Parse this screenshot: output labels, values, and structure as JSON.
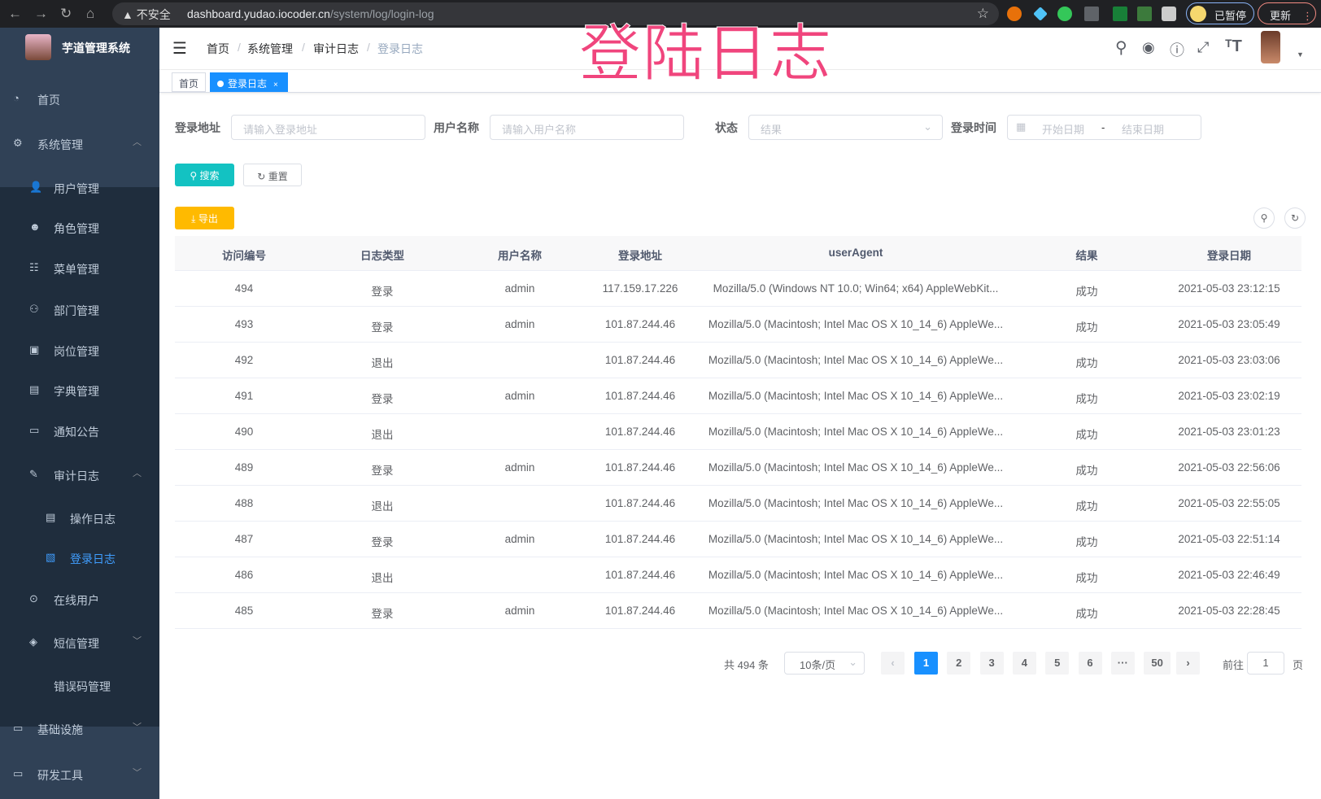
{
  "browser": {
    "back": "←",
    "forward": "→",
    "reload": "↻",
    "home": "⌂",
    "security": "▲ 不安全",
    "host": "dashboard.yudao.iocoder.cn",
    "path": "/system/log/login-log",
    "star": "☆",
    "paused": "已暂停",
    "update": "更新",
    "menu": "⋮"
  },
  "overlay_title": "登陆日志",
  "sidebar": {
    "title": "芋道管理系统",
    "items": [
      {
        "label": "首页",
        "icon": "dashboard-icon"
      },
      {
        "label": "系统管理",
        "icon": "gear-icon",
        "expanded": true
      },
      {
        "label": "用户管理",
        "icon": "user-icon"
      },
      {
        "label": "角色管理",
        "icon": "role-icon"
      },
      {
        "label": "菜单管理",
        "icon": "menu-icon"
      },
      {
        "label": "部门管理",
        "icon": "tree-icon"
      },
      {
        "label": "岗位管理",
        "icon": "post-icon"
      },
      {
        "label": "字典管理",
        "icon": "dict-icon"
      },
      {
        "label": "通知公告",
        "icon": "message-icon"
      },
      {
        "label": "审计日志",
        "icon": "log-icon",
        "expanded": true
      },
      {
        "label": "操作日志",
        "icon": "form-icon"
      },
      {
        "label": "登录日志",
        "icon": "logininfor-icon",
        "active": true
      },
      {
        "label": "在线用户",
        "icon": "online-icon"
      },
      {
        "label": "短信管理",
        "icon": "sms-icon"
      },
      {
        "label": "错误码管理",
        "icon": "code-icon"
      },
      {
        "label": "基础设施",
        "icon": "monitor-icon"
      },
      {
        "label": "研发工具",
        "icon": "tool-icon"
      }
    ]
  },
  "breadcrumb": [
    "首页",
    "系统管理",
    "审计日志",
    "登录日志"
  ],
  "tags": [
    {
      "label": "首页"
    },
    {
      "label": "登录日志",
      "active": true,
      "close": "×"
    }
  ],
  "filters": {
    "ip": {
      "label": "登录地址",
      "placeholder": "请输入登录地址"
    },
    "username": {
      "label": "用户名称",
      "placeholder": "请输入用户名称"
    },
    "status": {
      "label": "状态",
      "placeholder": "结果"
    },
    "time": {
      "label": "登录时间",
      "start": "开始日期",
      "sep": "-",
      "end": "结束日期"
    }
  },
  "buttons": {
    "search": "搜索",
    "reset": "重置",
    "export": "导出"
  },
  "colors": {
    "primary": "#1890ff",
    "search": "#13c2c2",
    "export": "#ffba00",
    "sidebar": "#304156",
    "overlay": "#f0457d"
  },
  "table": {
    "columns": [
      "访问编号",
      "日志类型",
      "用户名称",
      "登录地址",
      "userAgent",
      "结果",
      "登录日期"
    ],
    "rows": [
      [
        "494",
        "登录",
        "admin",
        "117.159.17.226",
        "Mozilla/5.0 (Windows NT 10.0; Win64; x64) AppleWebKit...",
        "成功",
        "2021-05-03 23:12:15"
      ],
      [
        "493",
        "登录",
        "admin",
        "101.87.244.46",
        "Mozilla/5.0 (Macintosh; Intel Mac OS X 10_14_6) AppleWe...",
        "成功",
        "2021-05-03 23:05:49"
      ],
      [
        "492",
        "退出",
        "",
        "101.87.244.46",
        "Mozilla/5.0 (Macintosh; Intel Mac OS X 10_14_6) AppleWe...",
        "成功",
        "2021-05-03 23:03:06"
      ],
      [
        "491",
        "登录",
        "admin",
        "101.87.244.46",
        "Mozilla/5.0 (Macintosh; Intel Mac OS X 10_14_6) AppleWe...",
        "成功",
        "2021-05-03 23:02:19"
      ],
      [
        "490",
        "退出",
        "",
        "101.87.244.46",
        "Mozilla/5.0 (Macintosh; Intel Mac OS X 10_14_6) AppleWe...",
        "成功",
        "2021-05-03 23:01:23"
      ],
      [
        "489",
        "登录",
        "admin",
        "101.87.244.46",
        "Mozilla/5.0 (Macintosh; Intel Mac OS X 10_14_6) AppleWe...",
        "成功",
        "2021-05-03 22:56:06"
      ],
      [
        "488",
        "退出",
        "",
        "101.87.244.46",
        "Mozilla/5.0 (Macintosh; Intel Mac OS X 10_14_6) AppleWe...",
        "成功",
        "2021-05-03 22:55:05"
      ],
      [
        "487",
        "登录",
        "admin",
        "101.87.244.46",
        "Mozilla/5.0 (Macintosh; Intel Mac OS X 10_14_6) AppleWe...",
        "成功",
        "2021-05-03 22:51:14"
      ],
      [
        "486",
        "退出",
        "",
        "101.87.244.46",
        "Mozilla/5.0 (Macintosh; Intel Mac OS X 10_14_6) AppleWe...",
        "成功",
        "2021-05-03 22:46:49"
      ],
      [
        "485",
        "登录",
        "admin",
        "101.87.244.46",
        "Mozilla/5.0 (Macintosh; Intel Mac OS X 10_14_6) AppleWe...",
        "成功",
        "2021-05-03 22:28:45"
      ]
    ]
  },
  "pagination": {
    "total": "共 494 条",
    "page_size": "10条/页",
    "prev": "‹",
    "next": "›",
    "pages": [
      "1",
      "2",
      "3",
      "4",
      "5",
      "6",
      "···",
      "50"
    ],
    "current": "1",
    "goto": "前往",
    "goto_value": "1",
    "page_unit": "页"
  }
}
